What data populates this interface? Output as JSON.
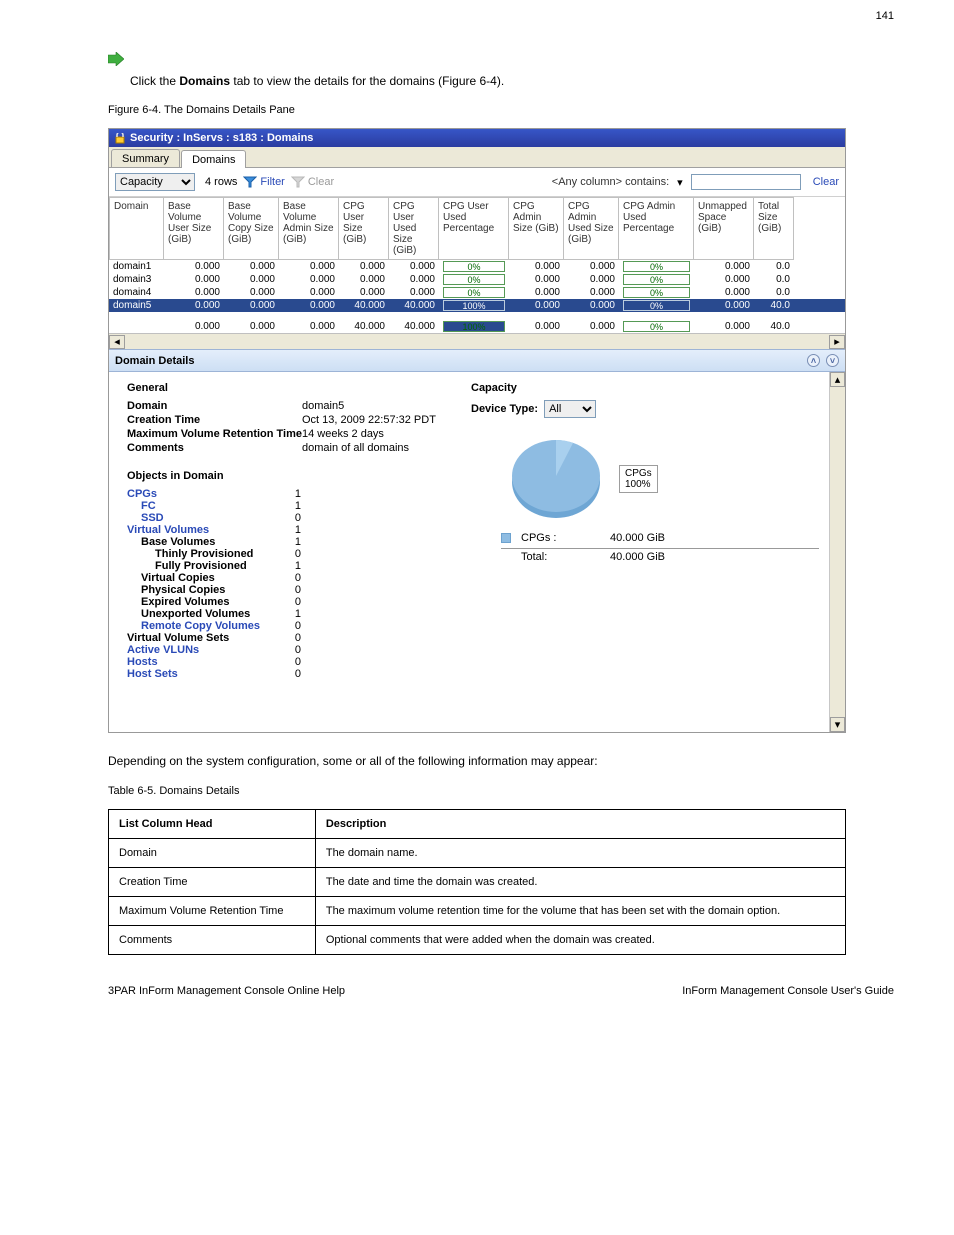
{
  "page_number_top": "141",
  "intro_text_prefix": "Click the ",
  "intro_text_bold": "Domains",
  "intro_text_suffix": " tab to view the details for the domains (Figure 6-4).",
  "figure_caption": "Figure 6-4.  The Domains Details Pane",
  "window_title": "Security : InServs : s183 : Domains",
  "tabs": {
    "summary": "Summary",
    "domains": "Domains"
  },
  "toolbar": {
    "view_select": "Capacity",
    "row_count": "4 rows",
    "filter": "Filter",
    "clear_filter": "Clear",
    "any_column_prefix": "<Any column> contains:",
    "clear_search": "Clear"
  },
  "grid": {
    "headers": [
      "Domain",
      "Base Volume User Size (GiB)",
      "Base Volume Copy Size (GiB)",
      "Base Volume Admin Size (GiB)",
      "CPG User Size (GiB)",
      "CPG User Used Size (GiB)",
      "CPG User Used Percentage",
      "CPG Admin Size (GiB)",
      "CPG Admin Used Size (GiB)",
      "CPG Admin Used Percentage",
      "Unmapped Space (GiB)",
      "Total Size (GiB)"
    ],
    "rows": [
      {
        "cells": [
          "domain1",
          "0.000",
          "0.000",
          "0.000",
          "0.000",
          "0.000",
          "0%",
          "0.000",
          "0.000",
          "0%",
          "0.000",
          "0.0"
        ],
        "selected": false,
        "pct6": 0,
        "pct9": 0
      },
      {
        "cells": [
          "domain3",
          "0.000",
          "0.000",
          "0.000",
          "0.000",
          "0.000",
          "0%",
          "0.000",
          "0.000",
          "0%",
          "0.000",
          "0.0"
        ],
        "selected": false,
        "pct6": 0,
        "pct9": 0
      },
      {
        "cells": [
          "domain4",
          "0.000",
          "0.000",
          "0.000",
          "0.000",
          "0.000",
          "0%",
          "0.000",
          "0.000",
          "0%",
          "0.000",
          "0.0"
        ],
        "selected": false,
        "pct6": 0,
        "pct9": 0
      },
      {
        "cells": [
          "domain5",
          "0.000",
          "0.000",
          "0.000",
          "40.000",
          "40.000",
          "100%",
          "0.000",
          "0.000",
          "0%",
          "0.000",
          "40.0"
        ],
        "selected": true,
        "pct6": 100,
        "pct9": 0
      }
    ],
    "summary": {
      "cells": [
        "",
        "0.000",
        "0.000",
        "0.000",
        "40.000",
        "40.000",
        "100%",
        "0.000",
        "0.000",
        "0%",
        "0.000",
        "40.0"
      ],
      "pct6": 100,
      "pct9": 0
    }
  },
  "details_header": "Domain Details",
  "general": {
    "section_title": "General",
    "items": [
      {
        "k": "Domain",
        "v": "domain5"
      },
      {
        "k": "Creation Time",
        "v": "Oct 13, 2009 22:57:32 PDT"
      },
      {
        "k": "Maximum Volume Retention Time",
        "v": "14 weeks 2 days"
      },
      {
        "k": "Comments",
        "v": "domain of all domains"
      }
    ],
    "objects_title": "Objects in Domain",
    "objects": [
      {
        "label": "CPGs",
        "v": "1",
        "link": true
      },
      {
        "label": "FC",
        "v": "1",
        "indent": 1,
        "link": true
      },
      {
        "label": "SSD",
        "v": "0",
        "indent": 1,
        "link": true
      },
      {
        "label": "Virtual Volumes",
        "v": "1",
        "link": true
      },
      {
        "label": "Base Volumes",
        "v": "1",
        "indent": 1,
        "bold": true
      },
      {
        "label": "Thinly Provisioned",
        "v": "0",
        "indent": 2,
        "bold": true
      },
      {
        "label": "Fully Provisioned",
        "v": "1",
        "indent": 2,
        "bold": true
      },
      {
        "label": "Virtual Copies",
        "v": "0",
        "indent": 1,
        "bold": true
      },
      {
        "label": "Physical Copies",
        "v": "0",
        "indent": 1,
        "bold": true
      },
      {
        "label": "Expired Volumes",
        "v": "0",
        "indent": 1,
        "bold": true
      },
      {
        "label": "Unexported Volumes",
        "v": "1",
        "indent": 1,
        "bold": true
      },
      {
        "label": "Remote Copy Volumes",
        "v": "0",
        "indent": 1,
        "link": true
      },
      {
        "label": "Virtual Volume Sets",
        "v": "0",
        "bold": true
      },
      {
        "label": "Active VLUNs",
        "v": "0",
        "link": true
      },
      {
        "label": "Hosts",
        "v": "0",
        "link": true
      },
      {
        "label": "Host Sets",
        "v": "0",
        "link": true
      }
    ]
  },
  "capacity": {
    "section_title": "Capacity",
    "device_type_label": "Device Type:",
    "device_type_value": "All",
    "pie": {
      "slice_color": "#8ebce2",
      "wedge_color": "#6ea6d4",
      "pct": 100
    },
    "legend_label": "CPGs",
    "legend_pct": "100%",
    "rows": [
      {
        "label": "CPGs :",
        "v": "40.000 GiB"
      }
    ],
    "total_label": "Total:",
    "total_value": "40.000 GiB"
  },
  "below_paragraph": "Depending on the system configuration, some or all of the following information may appear:",
  "table_caption": "Table 6-5.  Domains Details",
  "desc_table": {
    "headers": [
      "List Column Head",
      "Description"
    ],
    "rows": [
      [
        "Domain",
        "The domain name."
      ],
      [
        "Creation Time",
        "The date and time the domain was created."
      ],
      [
        "Maximum Volume Retention Time",
        "The maximum volume retention time for the volume that has been set with the domain option."
      ],
      [
        "Comments",
        "Optional comments that were added when the domain was created."
      ]
    ]
  },
  "footer_text": "3PAR InForm Management Console Online Help",
  "chapter_text": "InForm Management Console User's Guide"
}
